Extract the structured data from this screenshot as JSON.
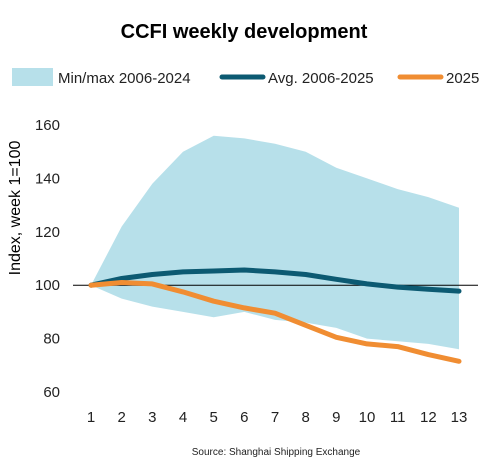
{
  "chart_data": {
    "type": "line",
    "title": "CCFI weekly development",
    "ylabel": "Index, week 1=100",
    "xlabel": "",
    "source": "Source: Shanghai Shipping Exchange",
    "x": [
      1,
      2,
      3,
      4,
      5,
      6,
      7,
      8,
      9,
      10,
      11,
      12,
      13
    ],
    "ylim": [
      60,
      160
    ],
    "yticks": [
      60,
      80,
      100,
      120,
      140,
      160
    ],
    "reference_line": 100,
    "grid": false,
    "legend_position": "top",
    "band": {
      "name": "Min/max 2006-2024",
      "color": "#b7e0ea",
      "min": [
        100,
        95,
        92,
        90,
        88,
        90,
        87,
        86,
        84,
        80,
        79,
        78,
        76
      ],
      "max": [
        100,
        122,
        138,
        150,
        156,
        155,
        153,
        150,
        144,
        140,
        136,
        133,
        129
      ]
    },
    "series": [
      {
        "name": "Avg. 2006-2025",
        "color": "#0c5a72",
        "values": [
          100,
          102.5,
          104,
          105,
          105.3,
          105.7,
          105,
          104,
          102.2,
          100.5,
          99.3,
          98.5,
          97.8
        ]
      },
      {
        "name": "2025",
        "color": "#f08d32",
        "values": [
          100,
          101,
          100.5,
          97.5,
          94,
          91.5,
          89.5,
          85,
          80.5,
          78,
          77,
          74,
          71.5
        ]
      }
    ]
  }
}
